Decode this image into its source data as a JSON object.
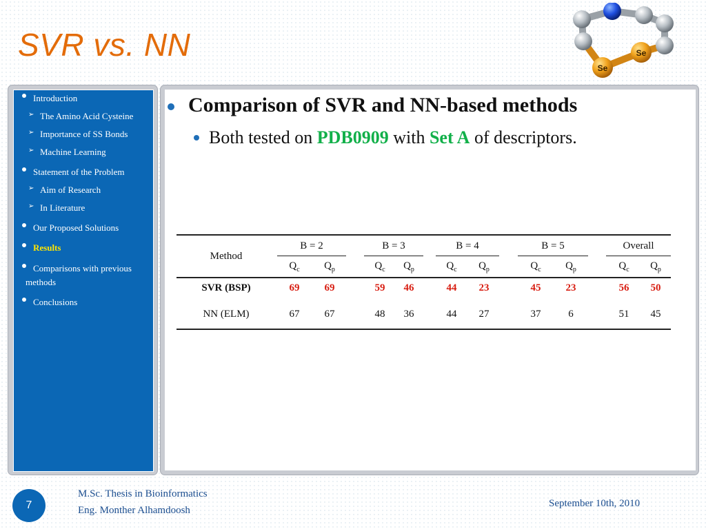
{
  "slide": {
    "title": "SVR vs. NN",
    "page_number": "7"
  },
  "sidebar": {
    "items": [
      {
        "label": "Introduction",
        "level": 1
      },
      {
        "label": "The Amino Acid Cysteine",
        "level": 2
      },
      {
        "label": "Importance of SS Bonds",
        "level": 2
      },
      {
        "label": "Machine Learning",
        "level": 2
      },
      {
        "label": "Statement of the Problem",
        "level": 1
      },
      {
        "label": "Aim of Research",
        "level": 2
      },
      {
        "label": "In Literature",
        "level": 2
      },
      {
        "label": "Our Proposed Solutions",
        "level": 1
      },
      {
        "label": "Results",
        "level": 1,
        "active": true
      },
      {
        "label": "Comparisons with previous",
        "label_cont": "methods",
        "level": 1
      },
      {
        "label": "Conclusions",
        "level": 1
      }
    ]
  },
  "content": {
    "bullet1": "Comparison of SVR and NN-based methods",
    "bullet2": {
      "pre": "Both tested on ",
      "hl1": "PDB0909",
      "mid": " with ",
      "hl2": "Set A",
      "post": " of descriptors."
    }
  },
  "molecule": {
    "atom1": "Se",
    "atom2": "Se"
  },
  "table": {
    "method_header": "Method",
    "groups": [
      "B = 2",
      "B = 3",
      "B = 4",
      "B = 5",
      "Overall"
    ],
    "sub_q": "Q",
    "sub_c": "c",
    "sub_p": "p",
    "rows": [
      {
        "method": "SVR (BSP)",
        "values": [
          "69",
          "69",
          "59",
          "46",
          "44",
          "23",
          "45",
          "23",
          "56",
          "50"
        ],
        "highlight": true
      },
      {
        "method": "NN (ELM)",
        "values": [
          "67",
          "67",
          "48",
          "36",
          "44",
          "27",
          "37",
          "6",
          "51",
          "45"
        ],
        "highlight": false
      }
    ]
  },
  "footer": {
    "line1": "M.Sc. Thesis in Bioinformatics",
    "line2": "Eng. Monther Alhamdoosh",
    "date": "September 10th, 2010"
  },
  "colors": {
    "title": "#e36c0a",
    "sidebar_bg": "#0b67b5",
    "active_nav": "#ffe600",
    "highlight_green": "#12b04a",
    "highlight_red": "#d81e12"
  }
}
